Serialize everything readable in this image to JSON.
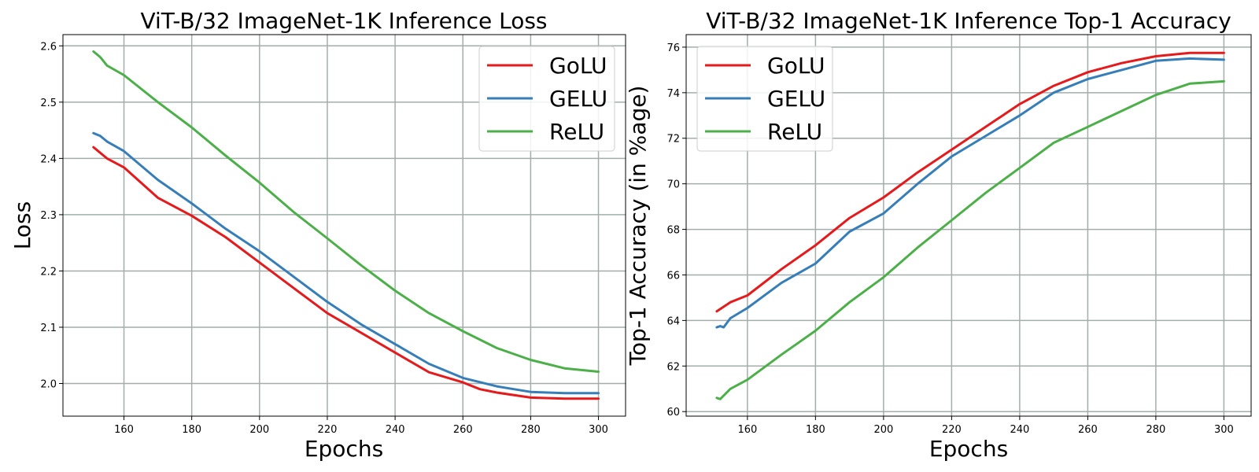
{
  "chart_data": [
    {
      "type": "line",
      "title": "ViT-B/32 ImageNet-1K Inference Loss",
      "xlabel": "Epochs",
      "ylabel": "Loss",
      "xlim": [
        142,
        308
      ],
      "ylim": [
        1.942,
        2.62
      ],
      "xticks": [
        160,
        180,
        200,
        220,
        240,
        260,
        280,
        300
      ],
      "yticks": [
        2.0,
        2.1,
        2.2,
        2.3,
        2.4,
        2.5,
        2.6
      ],
      "ytick_labels": [
        "2.0",
        "2.1",
        "2.2",
        "2.3",
        "2.4",
        "2.5",
        "2.6"
      ],
      "grid": true,
      "legend_position": "top-right",
      "series": [
        {
          "name": "GoLU",
          "color": "#e41a1c",
          "x": [
            151,
            155,
            160,
            170,
            180,
            190,
            200,
            210,
            220,
            230,
            240,
            250,
            260,
            265,
            270,
            280,
            290,
            300
          ],
          "y": [
            2.42,
            2.4,
            2.384,
            2.33,
            2.298,
            2.26,
            2.215,
            2.17,
            2.125,
            2.09,
            2.055,
            2.02,
            2.002,
            1.99,
            1.984,
            1.975,
            1.973,
            1.973
          ]
        },
        {
          "name": "GELU",
          "color": "#377eb8",
          "x": [
            151,
            153,
            155,
            160,
            170,
            180,
            190,
            200,
            210,
            220,
            230,
            240,
            250,
            260,
            270,
            280,
            290,
            300
          ],
          "y": [
            2.445,
            2.44,
            2.43,
            2.413,
            2.362,
            2.32,
            2.275,
            2.235,
            2.19,
            2.145,
            2.105,
            2.07,
            2.035,
            2.01,
            1.995,
            1.985,
            1.983,
            1.983
          ]
        },
        {
          "name": "ReLU",
          "color": "#4daf4a",
          "x": [
            151,
            153,
            155,
            160,
            170,
            180,
            190,
            200,
            210,
            220,
            230,
            240,
            250,
            260,
            270,
            280,
            290,
            300
          ],
          "y": [
            2.59,
            2.58,
            2.565,
            2.548,
            2.5,
            2.455,
            2.405,
            2.357,
            2.305,
            2.258,
            2.21,
            2.165,
            2.125,
            2.093,
            2.063,
            2.042,
            2.027,
            2.021
          ]
        }
      ]
    },
    {
      "type": "line",
      "title": "ViT-B/32 ImageNet-1K Inference Top-1 Accuracy",
      "xlabel": "Epochs",
      "ylabel": "Top-1 Accuracy (in %age)",
      "xlim": [
        142,
        308
      ],
      "ylim": [
        59.8,
        76.55
      ],
      "xticks": [
        160,
        180,
        200,
        220,
        240,
        260,
        280,
        300
      ],
      "yticks": [
        60,
        62,
        64,
        66,
        68,
        70,
        72,
        74,
        76
      ],
      "ytick_labels": [
        "60",
        "62",
        "64",
        "66",
        "68",
        "70",
        "72",
        "74",
        "76"
      ],
      "grid": true,
      "legend_position": "top-left",
      "series": [
        {
          "name": "GoLU",
          "color": "#e41a1c",
          "x": [
            151,
            155,
            160,
            170,
            180,
            190,
            200,
            210,
            220,
            230,
            240,
            250,
            260,
            270,
            280,
            290,
            300
          ],
          "y": [
            64.4,
            64.8,
            65.1,
            66.25,
            67.3,
            68.5,
            69.4,
            70.5,
            71.5,
            72.5,
            73.5,
            74.3,
            74.9,
            75.3,
            75.6,
            75.75,
            75.75
          ]
        },
        {
          "name": "GELU",
          "color": "#377eb8",
          "x": [
            151,
            152,
            153,
            155,
            160,
            170,
            180,
            190,
            200,
            210,
            220,
            230,
            240,
            250,
            260,
            270,
            280,
            290,
            300
          ],
          "y": [
            63.7,
            63.75,
            63.7,
            64.1,
            64.55,
            65.65,
            66.5,
            67.9,
            68.7,
            70.0,
            71.2,
            72.1,
            73.0,
            74.0,
            74.6,
            75.0,
            75.4,
            75.5,
            75.45
          ]
        },
        {
          "name": "ReLU",
          "color": "#4daf4a",
          "x": [
            151,
            152,
            155,
            160,
            170,
            180,
            190,
            200,
            210,
            220,
            230,
            240,
            250,
            260,
            270,
            280,
            290,
            300
          ],
          "y": [
            60.6,
            60.55,
            61.0,
            61.4,
            62.5,
            63.55,
            64.8,
            65.9,
            67.2,
            68.4,
            69.6,
            70.7,
            71.8,
            72.5,
            73.2,
            73.9,
            74.4,
            74.5
          ]
        }
      ]
    }
  ]
}
